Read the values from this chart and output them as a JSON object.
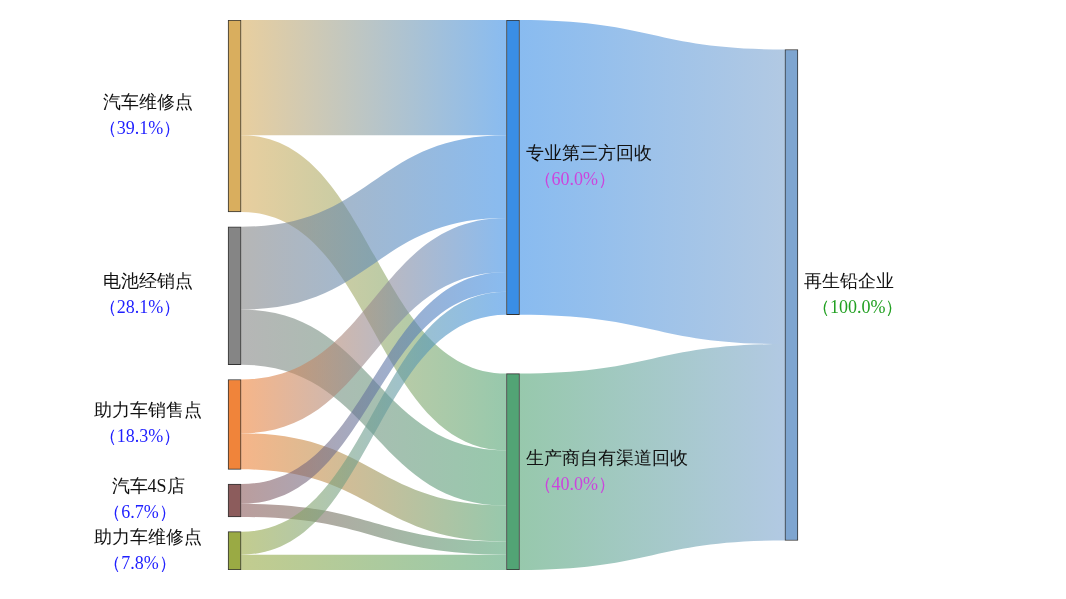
{
  "chart_data": {
    "type": "other",
    "categories": [
      "汽车维修点",
      "电池经销点",
      "助力车销售点",
      "汽车4S店",
      "助力车维修点",
      "专业第三方回收",
      "生产商自有渠道回收",
      "再生铅企业"
    ],
    "colors": [
      "#d9ae5e",
      "#858585",
      "#f0843a",
      "#8c5c5c",
      "#9aaa44",
      "#3a8ee6",
      "#52a475",
      "#7ea5d0"
    ],
    "series": [
      {
        "values": [
          39.1,
          28.1,
          18.3,
          6.7,
          7.8,
          null,
          null,
          null
        ],
        "value_labels": [
          "（39.1%）",
          "（28.1%）",
          "（18.3%）",
          "（6.7%）",
          "（7.8%）",
          null,
          null,
          null
        ]
      },
      {
        "values": [
          null,
          null,
          null,
          null,
          null,
          60.0,
          40.0,
          null
        ],
        "value_labels": [
          null,
          null,
          null,
          null,
          null,
          "（60.0%）",
          "（40.0%）",
          null
        ]
      },
      {
        "values": [
          null,
          null,
          null,
          null,
          null,
          null,
          null,
          100.0
        ],
        "value_labels": [
          null,
          null,
          null,
          null,
          null,
          null,
          null,
          "（100.0%）"
        ]
      }
    ]
  }
}
